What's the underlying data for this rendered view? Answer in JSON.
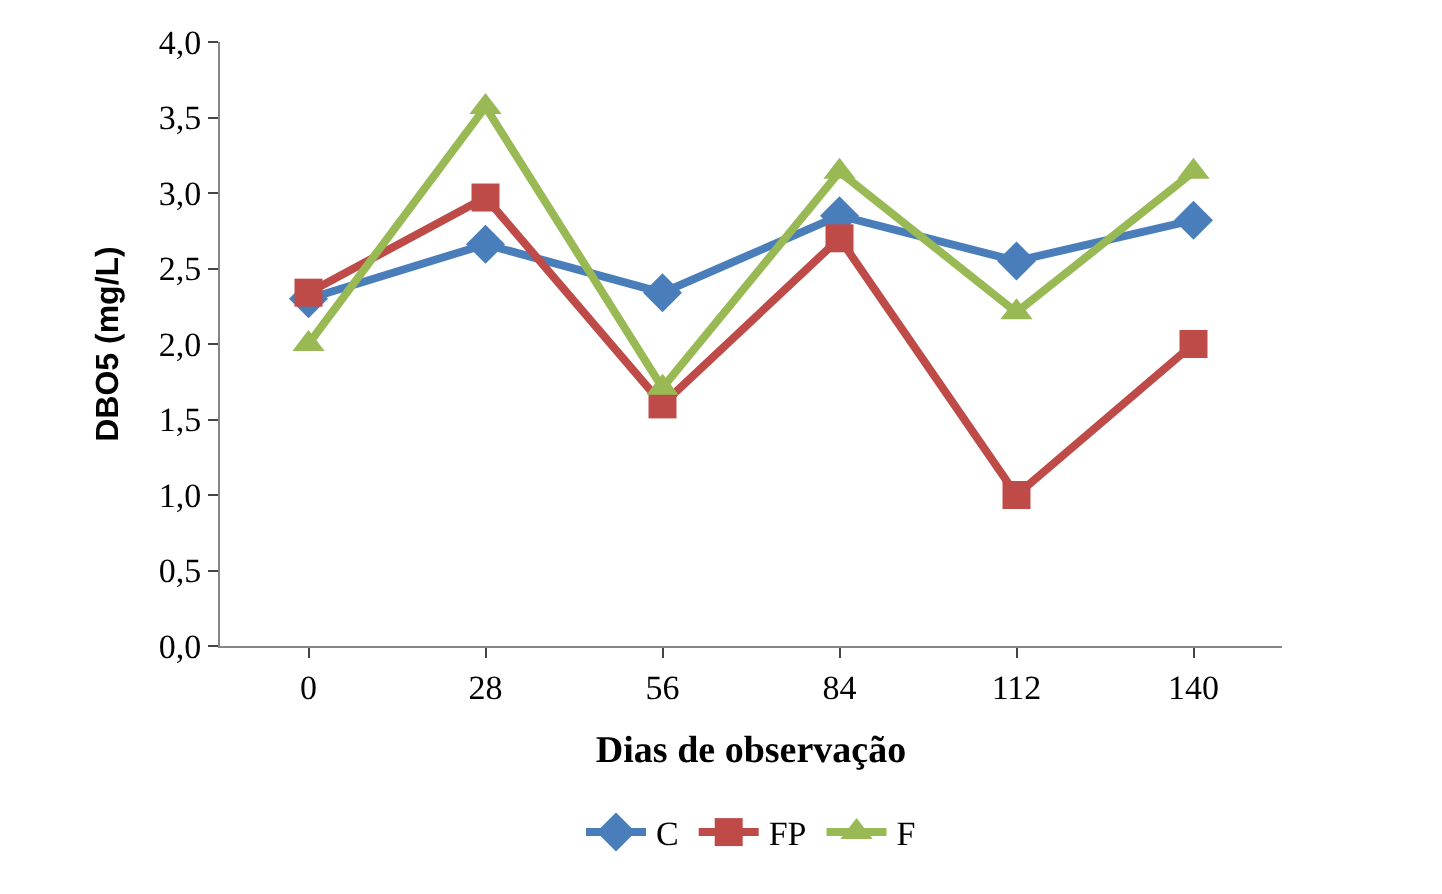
{
  "chart_data": {
    "type": "line",
    "xlabel": "Dias de observação",
    "ylabel": "DBO5 (mg/L)",
    "categories": [
      "0",
      "28",
      "56",
      "84",
      "112",
      "140"
    ],
    "series": [
      {
        "name": "C",
        "color": "#4a7ebb",
        "marker": "diamond",
        "values": [
          2.3,
          2.66,
          2.34,
          2.85,
          2.55,
          2.82
        ]
      },
      {
        "name": "FP",
        "color": "#be4b48",
        "marker": "square",
        "values": [
          2.34,
          2.97,
          1.6,
          2.7,
          1.0,
          2.0
        ]
      },
      {
        "name": "F",
        "color": "#98b954",
        "marker": "triangle",
        "values": [
          2.0,
          3.57,
          1.71,
          3.14,
          2.21,
          3.14
        ]
      }
    ],
    "ylim": [
      0,
      4
    ],
    "yticks": [
      {
        "value": 0,
        "label": "0,0"
      },
      {
        "value": 0.5,
        "label": "0,5"
      },
      {
        "value": 1,
        "label": "1,0"
      },
      {
        "value": 1.5,
        "label": "1,5"
      },
      {
        "value": 2,
        "label": "2,0"
      },
      {
        "value": 2.5,
        "label": "2,5"
      },
      {
        "value": 3,
        "label": "3,0"
      },
      {
        "value": 3.5,
        "label": "3,5"
      },
      {
        "value": 4,
        "label": "4,0"
      }
    ],
    "legend": "bottom"
  }
}
